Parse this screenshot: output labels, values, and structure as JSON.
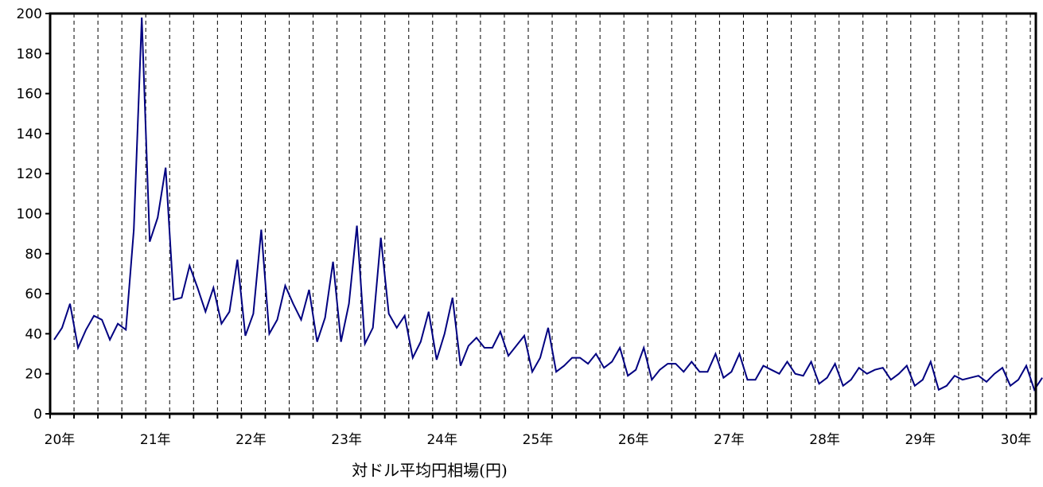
{
  "chart_data": {
    "type": "line",
    "xlabel": "対ドル平均円相場(円)",
    "ylabel": "",
    "ylim": [
      0,
      200
    ],
    "y_ticks": [
      "0",
      "20",
      "40",
      "60",
      "80",
      "100",
      "120",
      "140",
      "160",
      "180",
      "200"
    ],
    "x_ticks": [
      "20年",
      "21年",
      "22年",
      "23年",
      "24年",
      "25年",
      "26年",
      "27年",
      "28年",
      "29年",
      "30年"
    ],
    "grid": "vertical dashed lines every quarter",
    "line_color": "#000080",
    "series": [
      {
        "values": [
          37,
          43,
          55,
          33,
          42,
          49,
          47,
          37,
          45,
          42,
          92,
          198,
          86,
          98,
          123,
          57,
          58,
          74,
          63,
          51,
          63,
          45,
          51,
          77,
          39,
          50,
          92,
          40,
          47,
          64,
          55,
          47,
          62,
          36,
          48,
          76,
          36,
          55,
          94,
          35,
          43,
          88,
          50,
          43,
          49,
          28,
          36,
          51,
          27,
          40,
          58,
          24,
          34,
          38,
          33,
          33,
          41,
          29,
          34,
          39,
          21,
          28,
          43,
          21,
          24,
          28,
          28,
          25,
          30,
          23,
          26,
          33,
          19,
          22,
          33,
          17,
          22,
          25,
          25,
          21,
          26,
          21,
          21,
          30,
          18,
          21,
          30,
          17,
          17,
          24,
          22,
          20,
          26,
          20,
          19,
          26,
          15,
          18,
          25,
          14,
          17,
          23,
          20,
          22,
          23,
          17,
          20,
          24,
          14,
          17,
          26,
          12,
          14,
          19,
          17,
          18,
          19,
          16,
          20,
          23,
          14,
          17,
          24,
          12,
          18
        ]
      }
    ]
  }
}
